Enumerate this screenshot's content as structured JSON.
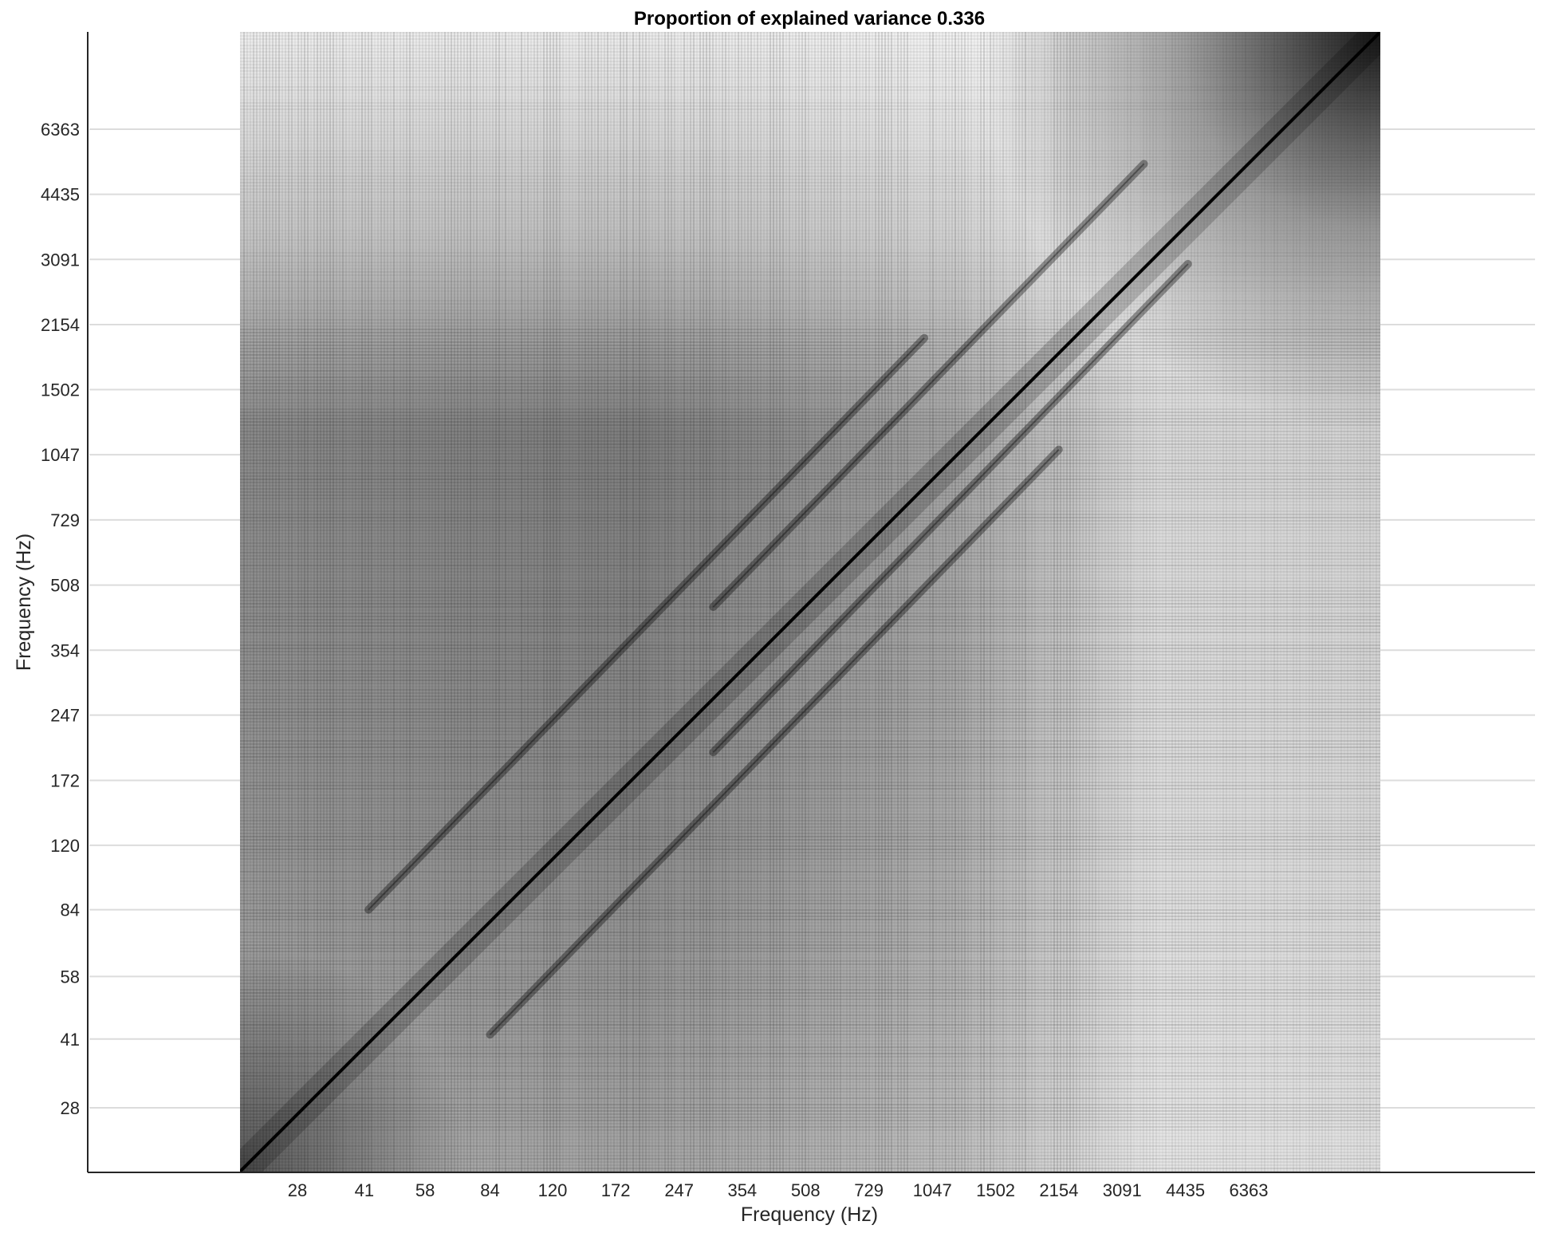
{
  "chart_data": {
    "type": "heatmap",
    "title": "Proportion of explained variance 0.336",
    "xlabel": "Frequency (Hz)",
    "ylabel": "Frequency (Hz)",
    "colormap": "gray (dark = high value, light = low value)",
    "x_tick_labels": [
      "28",
      "41",
      "58",
      "84",
      "120",
      "172",
      "247",
      "354",
      "508",
      "729",
      "1047",
      "1502",
      "2154",
      "3091",
      "4435",
      "6363"
    ],
    "y_tick_labels": [
      "28",
      "41",
      "58",
      "84",
      "120",
      "172",
      "247",
      "354",
      "508",
      "729",
      "1047",
      "1502",
      "2154",
      "3091",
      "4435",
      "6363"
    ],
    "scale": "log (both axes)",
    "grid": "horizontal lines at y ticks",
    "diagonal": "strong dark line along x = y",
    "harmonic_ridges": [
      {
        "y_over_x": 2,
        "x_start_hz": 42,
        "x_end_hz": 1000
      },
      {
        "y_over_x": 0.5,
        "x_start_hz": 84,
        "x_end_hz": 2154
      },
      {
        "y_over_x": 1.5,
        "x_start_hz": 300,
        "x_end_hz": 3500
      },
      {
        "y_over_x": 0.67,
        "x_start_hz": 300,
        "x_end_hz": 4500
      }
    ]
  },
  "colors": {
    "axis": "#262626",
    "grid": "#dcdcdc",
    "title": "#000000"
  }
}
